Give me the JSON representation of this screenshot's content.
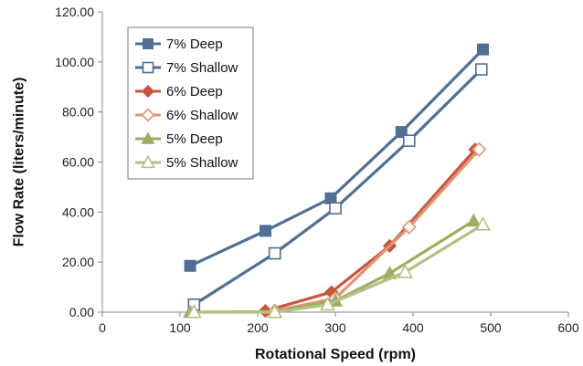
{
  "chart_data": {
    "type": "line",
    "xlabel": "Rotational Speed (rpm)",
    "ylabel": "Flow Rate (liters/minute)",
    "xlim": [
      0,
      600
    ],
    "ylim": [
      0,
      120
    ],
    "xticks": [
      "0",
      "100",
      "200",
      "300",
      "400",
      "500",
      "600"
    ],
    "yticks": [
      "0.00",
      "20.00",
      "40.00",
      "60.00",
      "80.00",
      "100.00",
      "120.00"
    ],
    "grid": false,
    "legend_position": "top-left",
    "series": [
      {
        "name": "7% Deep",
        "color": "#4f6f94",
        "marker": "square",
        "filled": true,
        "points": [
          [
            113,
            18.5
          ],
          [
            210,
            32.5
          ],
          [
            294,
            45.5
          ],
          [
            385,
            72
          ],
          [
            490,
            105
          ]
        ]
      },
      {
        "name": "7% Shallow",
        "color": "#4f6f94",
        "marker": "square",
        "filled": false,
        "points": [
          [
            118,
            3
          ],
          [
            222,
            23.5
          ],
          [
            300,
            41.5
          ],
          [
            395,
            68.5
          ],
          [
            488,
            97
          ]
        ]
      },
      {
        "name": "6% Deep",
        "color": "#c8553d",
        "marker": "diamond",
        "filled": true,
        "points": [
          [
            210,
            0.5
          ],
          [
            295,
            8
          ],
          [
            370,
            26.5
          ],
          [
            480,
            65
          ]
        ]
      },
      {
        "name": "6% Shallow",
        "color": "#e0956f",
        "marker": "diamond",
        "filled": false,
        "points": [
          [
            222,
            0.5
          ],
          [
            300,
            5.5
          ],
          [
            395,
            34
          ],
          [
            485,
            65
          ]
        ]
      },
      {
        "name": "5% Deep",
        "color": "#9cae5f",
        "marker": "triangle",
        "filled": true,
        "points": [
          [
            113,
            0
          ],
          [
            222,
            0.2
          ],
          [
            300,
            4.5
          ],
          [
            370,
            15.5
          ],
          [
            478,
            36.5
          ]
        ]
      },
      {
        "name": "5% Shallow",
        "color": "#b3c184",
        "marker": "triangle",
        "filled": false,
        "points": [
          [
            118,
            0
          ],
          [
            222,
            0
          ],
          [
            290,
            3
          ],
          [
            390,
            16
          ],
          [
            490,
            35
          ]
        ]
      }
    ]
  }
}
